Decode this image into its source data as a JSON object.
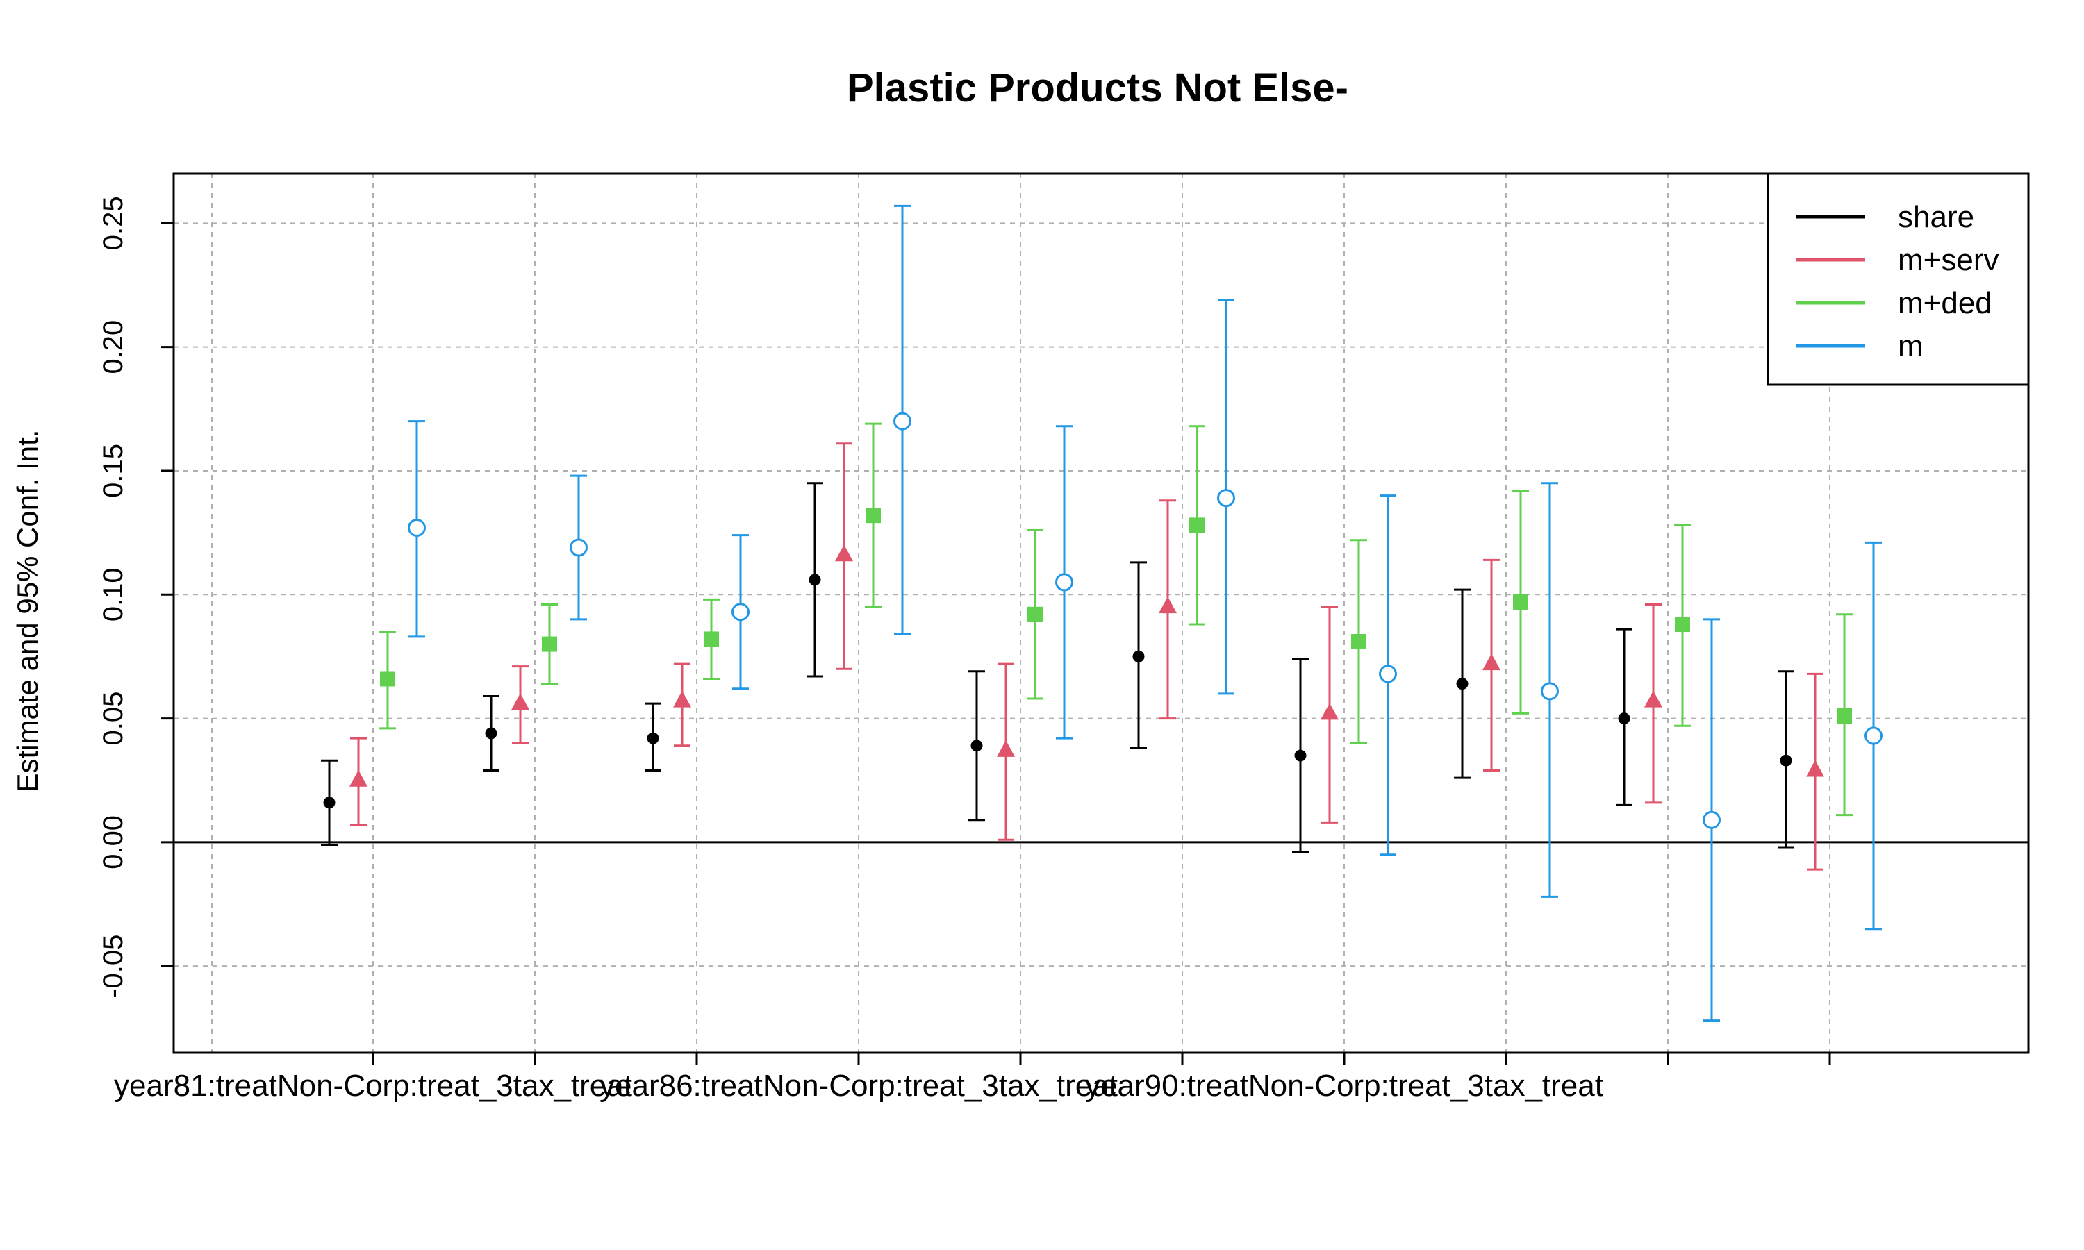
{
  "chart_data": {
    "type": "scatter",
    "title": "Plastic Products Not Else-",
    "xlabel": "",
    "ylabel": "Estimate and 95% Conf. Int.",
    "ylim": [
      -0.085,
      0.27
    ],
    "yticks": [
      "-0.05",
      "0.00",
      "0.05",
      "0.10",
      "0.15",
      "0.20",
      "0.25"
    ],
    "ytick_values": [
      -0.05,
      0,
      0.05,
      0.1,
      0.15,
      0.2,
      0.25
    ],
    "categories": [
      "year81:treatNon-Corp:treat_3tax_treat",
      "",
      "",
      "year86:treatNon-Corp:treat_3tax_treat",
      "",
      "",
      "year90:treatNon-Corp:treat_3tax_treat",
      "",
      "",
      ""
    ],
    "reference_line": 0,
    "grid": true,
    "legend_position": "top-right",
    "series": [
      {
        "name": "share",
        "color": "#000000",
        "marker": "dot",
        "estimates": [
          0.016,
          0.044,
          0.042,
          0.106,
          0.039,
          0.075,
          0.035,
          0.064,
          0.05,
          0.033
        ],
        "lower": [
          -0.001,
          0.029,
          0.029,
          0.067,
          0.009,
          0.038,
          -0.004,
          0.026,
          0.015,
          -0.002
        ],
        "upper": [
          0.033,
          0.059,
          0.056,
          0.145,
          0.069,
          0.113,
          0.074,
          0.102,
          0.086,
          0.069
        ]
      },
      {
        "name": "m+serv",
        "color": "#DF536B",
        "marker": "triangle",
        "estimates": [
          0.025,
          0.056,
          0.057,
          0.116,
          0.037,
          0.095,
          0.052,
          0.072,
          0.057,
          0.029
        ],
        "lower": [
          0.007,
          0.04,
          0.039,
          0.07,
          0.001,
          0.05,
          0.008,
          0.029,
          0.016,
          -0.011
        ],
        "upper": [
          0.042,
          0.071,
          0.072,
          0.161,
          0.072,
          0.138,
          0.095,
          0.114,
          0.096,
          0.068
        ]
      },
      {
        "name": "m+ded",
        "color": "#61D04F",
        "marker": "square",
        "estimates": [
          0.066,
          0.08,
          0.082,
          0.132,
          0.092,
          0.128,
          0.081,
          0.097,
          0.088,
          0.051
        ],
        "lower": [
          0.046,
          0.064,
          0.066,
          0.095,
          0.058,
          0.088,
          0.04,
          0.052,
          0.047,
          0.011
        ],
        "upper": [
          0.085,
          0.096,
          0.098,
          0.169,
          0.126,
          0.168,
          0.122,
          0.142,
          0.128,
          0.092
        ]
      },
      {
        "name": "m",
        "color": "#2297E6",
        "marker": "circle-open",
        "estimates": [
          0.127,
          0.119,
          0.093,
          0.17,
          0.105,
          0.139,
          0.068,
          0.061,
          0.009,
          0.043
        ],
        "lower": [
          0.083,
          0.09,
          0.062,
          0.084,
          0.042,
          0.06,
          -0.005,
          -0.022,
          -0.072,
          -0.035
        ],
        "upper": [
          0.17,
          0.148,
          0.124,
          0.257,
          0.168,
          0.219,
          0.14,
          0.145,
          0.09,
          0.121
        ]
      }
    ]
  }
}
